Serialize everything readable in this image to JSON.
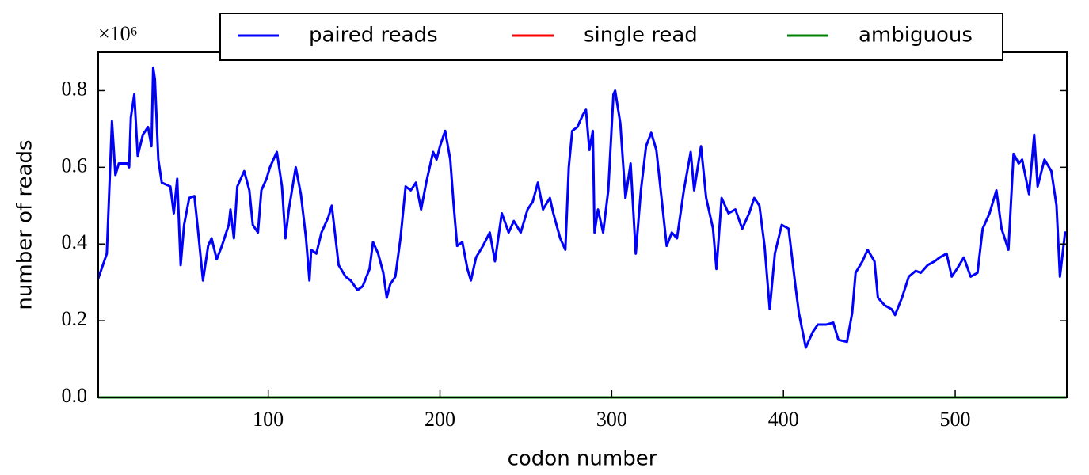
{
  "chart_data": {
    "type": "line",
    "x_label": "codon number",
    "y_label": "number of reads",
    "y_offset_label": "×10⁶",
    "xlim": [
      1,
      565
    ],
    "xticks": [
      100,
      200,
      300,
      400,
      500
    ],
    "ylim": [
      0,
      0.9
    ],
    "yticks": [
      {
        "value": 0,
        "label": "0.0"
      },
      0.2,
      0.4,
      0.6,
      0.8
    ],
    "grid": false,
    "legend": "top center",
    "series": [
      {
        "name": "paired reads",
        "color": "#0000ff",
        "x": [
          1,
          6,
          9,
          11,
          13,
          18,
          19,
          20,
          22,
          24,
          27,
          30,
          32,
          33,
          34,
          36,
          38,
          43,
          45,
          47,
          49,
          51,
          54,
          57,
          59,
          62,
          65,
          67,
          70,
          73,
          77,
          78,
          80,
          82,
          86,
          89,
          91,
          94,
          96,
          99,
          101,
          105,
          108,
          110,
          112,
          116,
          119,
          122,
          124,
          125,
          128,
          131,
          135,
          137,
          141,
          145,
          148,
          152,
          155,
          159,
          161,
          164,
          167,
          169,
          171,
          174,
          177,
          180,
          183,
          186,
          189,
          192,
          196,
          198,
          200,
          203,
          206,
          208,
          210,
          213,
          216,
          218,
          221,
          225,
          229,
          232,
          236,
          240,
          243,
          247,
          251,
          254,
          257,
          260,
          264,
          266,
          270,
          273,
          275,
          277,
          280,
          283,
          285,
          287,
          289,
          290,
          292,
          295,
          298,
          301,
          302,
          305,
          308,
          311,
          314,
          317,
          320,
          323,
          326,
          329,
          332,
          335,
          338,
          342,
          346,
          348,
          352,
          355,
          359,
          361,
          364,
          368,
          372,
          376,
          380,
          383,
          386,
          389,
          392,
          395,
          399,
          403,
          407,
          409,
          413,
          417,
          420,
          425,
          429,
          432,
          437,
          440,
          442,
          446,
          449,
          453,
          455,
          459,
          463,
          465,
          469,
          473,
          477,
          480,
          484,
          488,
          491,
          495,
          498,
          501,
          505,
          509,
          513,
          516,
          520,
          524,
          527,
          531,
          534,
          537,
          539,
          543,
          546,
          548,
          552,
          556,
          559,
          561,
          564,
          565
        ],
        "values": [
          0.31,
          0.375,
          0.72,
          0.58,
          0.61,
          0.61,
          0.6,
          0.73,
          0.79,
          0.63,
          0.685,
          0.705,
          0.655,
          0.86,
          0.83,
          0.62,
          0.56,
          0.55,
          0.48,
          0.57,
          0.345,
          0.45,
          0.52,
          0.525,
          0.44,
          0.305,
          0.395,
          0.415,
          0.36,
          0.395,
          0.45,
          0.49,
          0.415,
          0.55,
          0.59,
          0.54,
          0.45,
          0.43,
          0.54,
          0.57,
          0.6,
          0.64,
          0.55,
          0.415,
          0.49,
          0.6,
          0.53,
          0.415,
          0.305,
          0.385,
          0.375,
          0.43,
          0.47,
          0.5,
          0.345,
          0.315,
          0.305,
          0.28,
          0.29,
          0.335,
          0.405,
          0.375,
          0.325,
          0.26,
          0.295,
          0.315,
          0.415,
          0.55,
          0.54,
          0.56,
          0.49,
          0.56,
          0.64,
          0.62,
          0.655,
          0.695,
          0.62,
          0.5,
          0.395,
          0.405,
          0.335,
          0.305,
          0.365,
          0.395,
          0.43,
          0.355,
          0.48,
          0.43,
          0.46,
          0.43,
          0.49,
          0.51,
          0.56,
          0.49,
          0.52,
          0.48,
          0.415,
          0.385,
          0.6,
          0.695,
          0.705,
          0.735,
          0.75,
          0.645,
          0.695,
          0.43,
          0.49,
          0.43,
          0.54,
          0.79,
          0.8,
          0.715,
          0.52,
          0.61,
          0.375,
          0.54,
          0.655,
          0.69,
          0.645,
          0.52,
          0.395,
          0.43,
          0.415,
          0.54,
          0.64,
          0.54,
          0.655,
          0.52,
          0.44,
          0.335,
          0.52,
          0.48,
          0.49,
          0.44,
          0.48,
          0.52,
          0.5,
          0.395,
          0.23,
          0.375,
          0.45,
          0.44,
          0.29,
          0.22,
          0.13,
          0.17,
          0.19,
          0.19,
          0.195,
          0.15,
          0.145,
          0.22,
          0.325,
          0.355,
          0.385,
          0.355,
          0.26,
          0.24,
          0.23,
          0.215,
          0.26,
          0.315,
          0.33,
          0.325,
          0.345,
          0.355,
          0.365,
          0.375,
          0.315,
          0.335,
          0.365,
          0.315,
          0.325,
          0.44,
          0.48,
          0.54,
          0.44,
          0.385,
          0.635,
          0.61,
          0.62,
          0.53,
          0.685,
          0.55,
          0.62,
          0.59,
          0.5,
          0.315,
          0.43,
          0.43
        ]
      },
      {
        "name": "single read",
        "color": "#ff0000",
        "x": [
          1,
          565
        ],
        "values": [
          0,
          0
        ]
      },
      {
        "name": "ambiguous",
        "color": "#008000",
        "x": [
          1,
          565
        ],
        "values": [
          0,
          0
        ]
      }
    ]
  }
}
